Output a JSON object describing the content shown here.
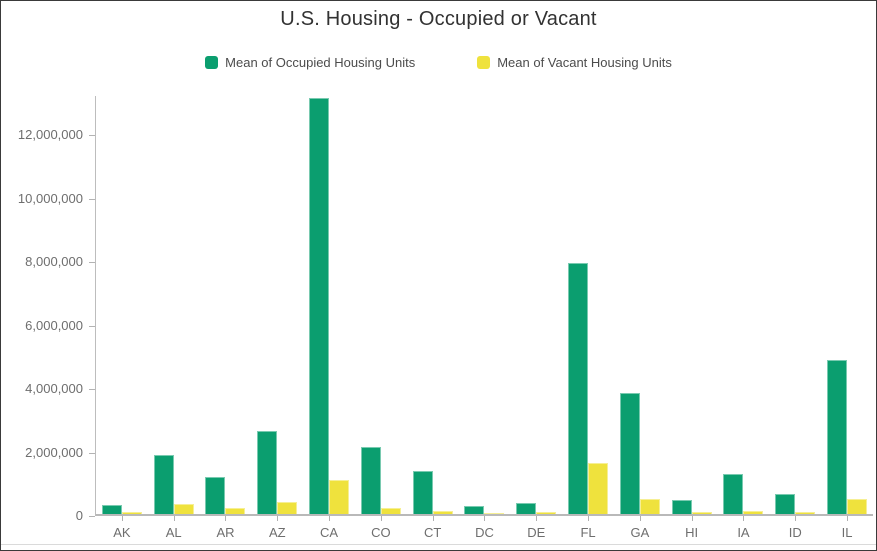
{
  "chart": {
    "title": "U.S. Housing - Occupied or Vacant"
  },
  "chart_data": {
    "type": "bar",
    "title": "U.S. Housing - Occupied or Vacant",
    "xlabel": "",
    "ylabel": "",
    "categories": [
      "AK",
      "AL",
      "AR",
      "AZ",
      "CA",
      "CO",
      "CT",
      "DC",
      "DE",
      "FL",
      "GA",
      "HI",
      "IA",
      "ID",
      "IL"
    ],
    "series": [
      {
        "name": "Mean of Occupied Housing Units",
        "color": "#0b9e6f",
        "values": [
          280000,
          1870000,
          1160000,
          2620000,
          13100000,
          2110000,
          1370000,
          260000,
          350000,
          7920000,
          3820000,
          440000,
          1250000,
          620000,
          4850000
        ]
      },
      {
        "name": "Mean of Vacant Housing Units",
        "color": "#efe23d",
        "values": [
          60000,
          330000,
          190000,
          370000,
          1080000,
          200000,
          100000,
          30000,
          50000,
          1600000,
          470000,
          60000,
          110000,
          70000,
          470000
        ]
      }
    ],
    "ylim": [
      0,
      13230000
    ],
    "yticks": [
      0,
      2000000,
      4000000,
      6000000,
      8000000,
      10000000,
      12000000
    ],
    "ytick_labels": [
      "0",
      "2,000,000",
      "4,000,000",
      "6,000,000",
      "8,000,000",
      "10,000,000",
      "12,000,000"
    ],
    "grid": false,
    "legend_position": "top",
    "axis_colors": {
      "line": "#bdbdbd",
      "tick": "#b0b0b0",
      "label": "#6e6e6e",
      "title": "#323232"
    }
  }
}
